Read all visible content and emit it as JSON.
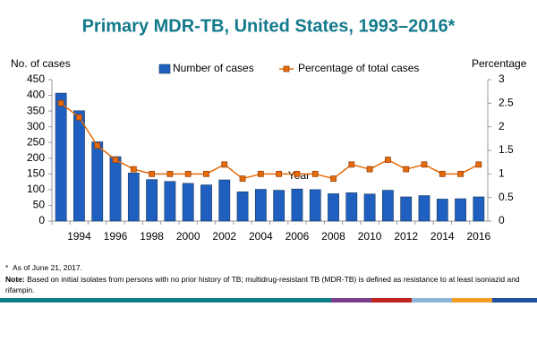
{
  "chart_data": {
    "type": "bar",
    "title": "Primary MDR-TB, United States, 1993–2016*",
    "y_label": "No. of cases",
    "y2_label": "Percentage",
    "x_label": "Year",
    "categories": [
      null,
      "1994",
      null,
      "1996",
      null,
      "1998",
      null,
      "2000",
      null,
      "2002",
      null,
      "2004",
      null,
      "2006",
      null,
      "2008",
      null,
      "2010",
      null,
      "2012",
      null,
      "2014",
      null,
      "2016"
    ],
    "series": [
      {
        "name": "Number of cases",
        "type": "bar",
        "color": "#1f5fc0",
        "values": [
          407,
          351,
          252,
          205,
          153,
          132,
          126,
          120,
          115,
          131,
          93,
          101,
          98,
          102,
          100,
          87,
          90,
          86,
          98,
          77,
          81,
          70,
          71,
          77
        ]
      },
      {
        "name": "Percentage of total cases",
        "type": "line",
        "axis": "y2",
        "color": "#e46c0a",
        "values": [
          2.5,
          2.2,
          1.6,
          1.3,
          1.1,
          1.0,
          1.0,
          1.0,
          1.0,
          1.2,
          0.9,
          1.0,
          1.0,
          1.0,
          1.0,
          0.9,
          1.2,
          1.1,
          1.3,
          1.1,
          1.2,
          1.0,
          1.0,
          1.2
        ]
      }
    ],
    "ylim": [
      0,
      450
    ],
    "yticks": [
      0,
      50,
      100,
      150,
      200,
      250,
      300,
      350,
      400,
      450
    ],
    "y2lim": [
      0,
      3
    ],
    "y2ticks": [
      0,
      0.5,
      1,
      1.5,
      2,
      2.5,
      3
    ],
    "grid": false,
    "legend": "top"
  },
  "notes": {
    "asterisk": "*",
    "date": "As of June 21, 2017.",
    "note_label": "Note:",
    "note_text": "Based on initial isolates from persons with no prior history of TB; multidrug-resistant TB (MDR-TB) is defined as resistance to at least isoniazid and rifampin."
  }
}
